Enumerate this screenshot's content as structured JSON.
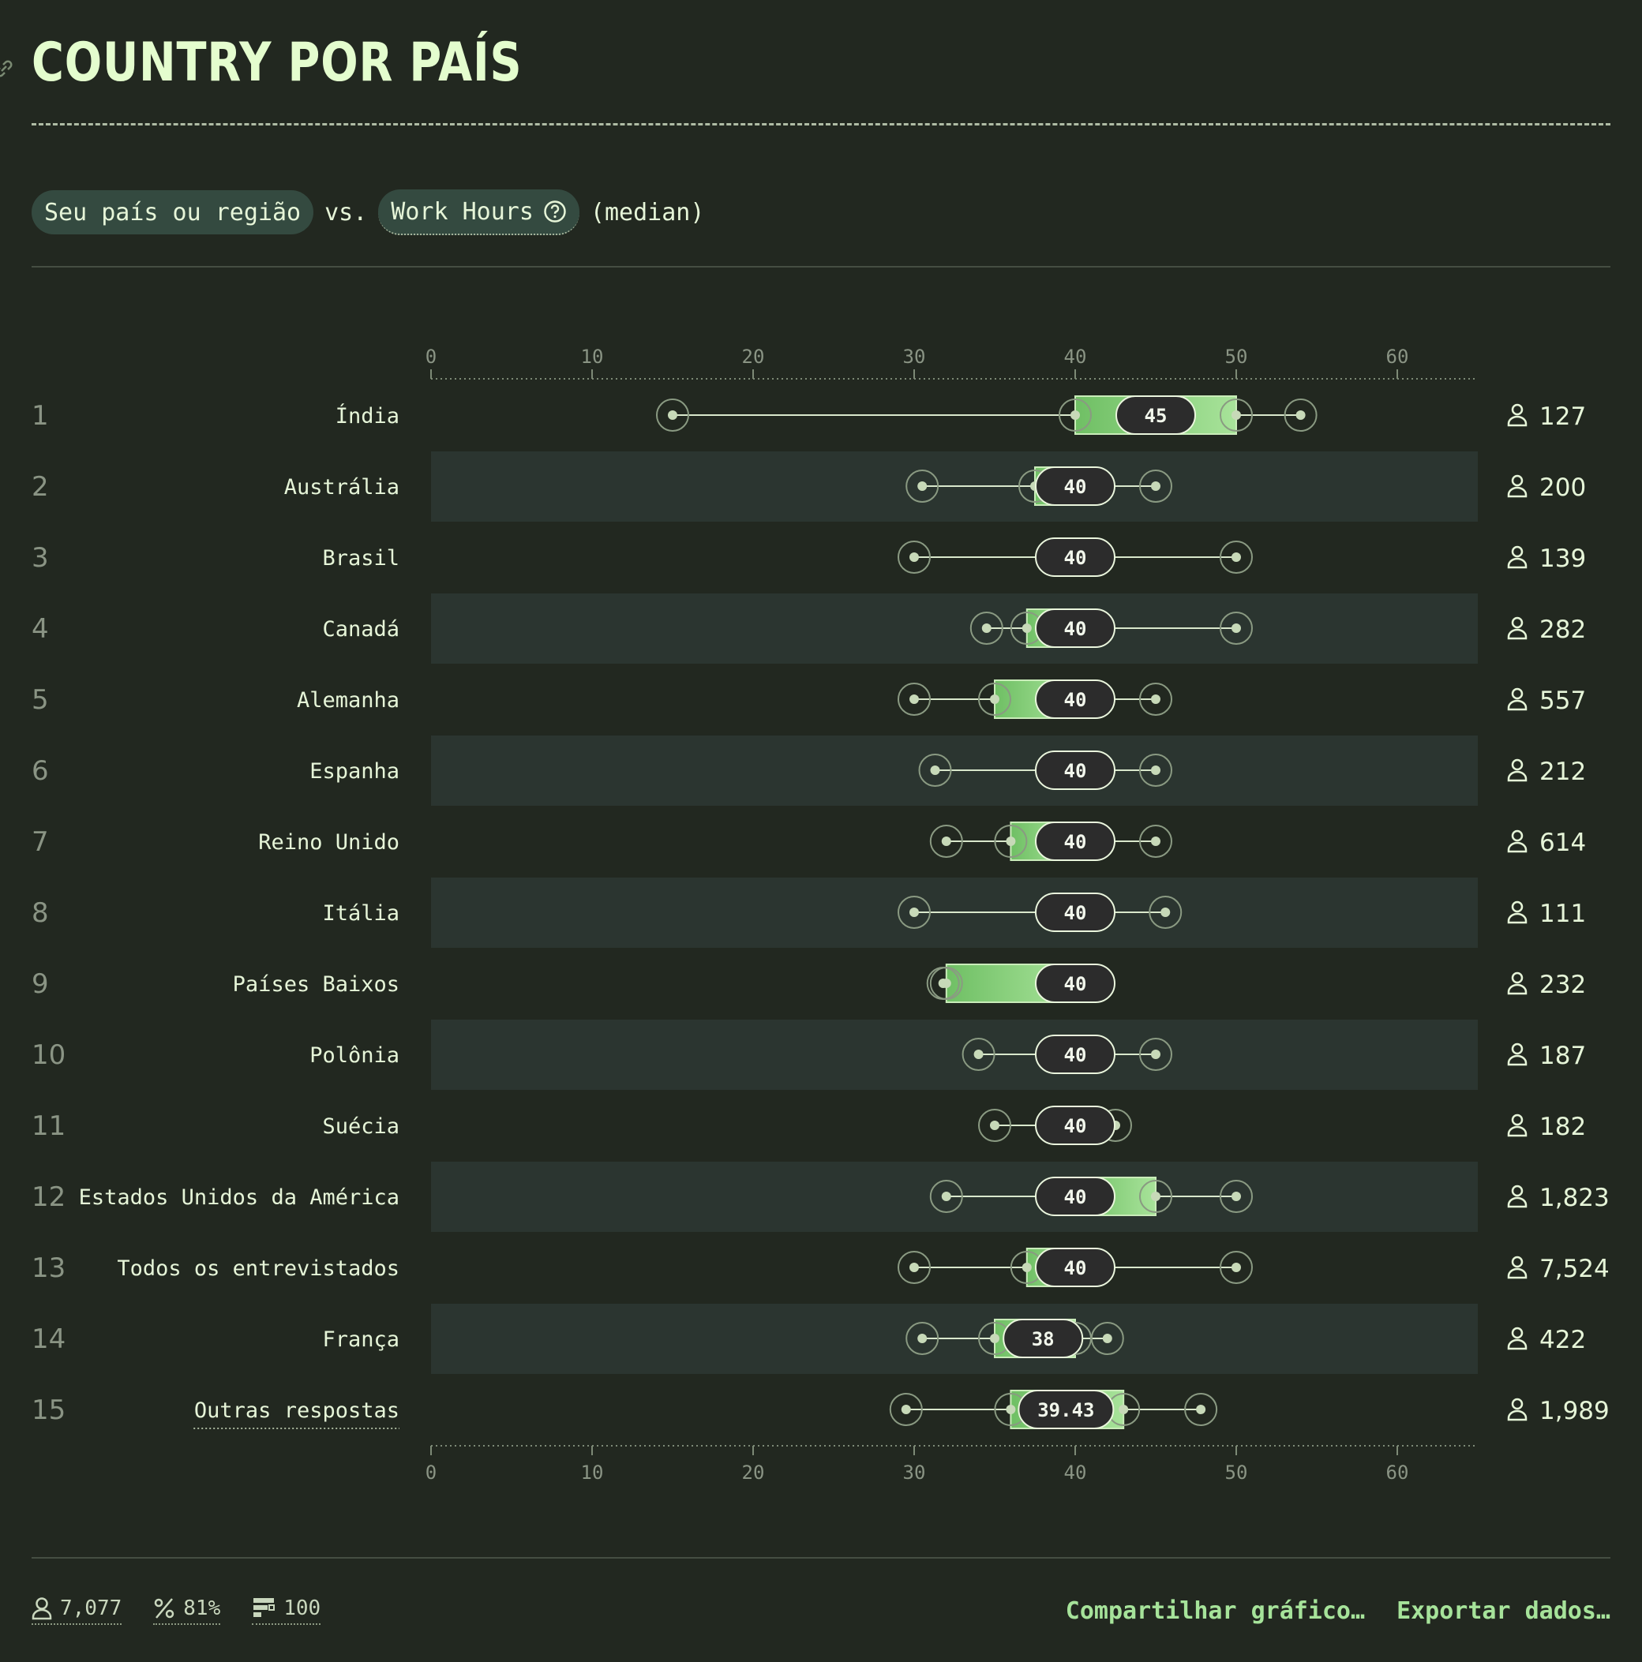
{
  "title": "COUNTRY POR PAÍS",
  "controls": {
    "group_label": "Seu país ou região",
    "vs": "vs.",
    "metric_label": "Work Hours",
    "stat_label": "(median)"
  },
  "chart_data": {
    "type": "boxplot",
    "title": "COUNTRY POR PAÍS",
    "xlim": [
      0,
      65
    ],
    "ticks": [
      0,
      10,
      20,
      30,
      40,
      50,
      60
    ],
    "rows": [
      {
        "rank": "1",
        "label": "Índia",
        "min": 15,
        "q1": 40,
        "median": 45,
        "q3": 50,
        "max": 54,
        "count": "127"
      },
      {
        "rank": "2",
        "label": "Austrália",
        "min": 30.5,
        "q1": 37.5,
        "median": 40,
        "q3": 40,
        "max": 45,
        "count": "200"
      },
      {
        "rank": "3",
        "label": "Brasil",
        "min": 30,
        "q1": 40,
        "median": 40,
        "q3": 40,
        "max": 50,
        "count": "139"
      },
      {
        "rank": "4",
        "label": "Canadá",
        "min": 34.5,
        "q1": 37,
        "median": 40,
        "q3": 40,
        "max": 50,
        "count": "282"
      },
      {
        "rank": "5",
        "label": "Alemanha",
        "min": 30,
        "q1": 35,
        "median": 40,
        "q3": 40,
        "max": 45,
        "count": "557"
      },
      {
        "rank": "6",
        "label": "Espanha",
        "min": 31.3,
        "q1": 40,
        "median": 40,
        "q3": 40,
        "max": 45,
        "count": "212"
      },
      {
        "rank": "7",
        "label": "Reino Unido",
        "min": 32,
        "q1": 36,
        "median": 40,
        "q3": 40,
        "max": 45,
        "count": "614"
      },
      {
        "rank": "8",
        "label": "Itália",
        "min": 30,
        "q1": 40,
        "median": 40,
        "q3": 40,
        "max": 45.6,
        "count": "111"
      },
      {
        "rank": "9",
        "label": "Países Baixos",
        "min": 31.8,
        "q1": 32,
        "median": 40,
        "q3": 40,
        "max": 40,
        "count": "232"
      },
      {
        "rank": "10",
        "label": "Polônia",
        "min": 34,
        "q1": 40,
        "median": 40,
        "q3": 40,
        "max": 45,
        "count": "187"
      },
      {
        "rank": "11",
        "label": "Suécia",
        "min": 35,
        "q1": 40,
        "median": 40,
        "q3": 40,
        "max": 42.5,
        "count": "182"
      },
      {
        "rank": "12",
        "label": "Estados Unidos da América",
        "min": 32,
        "q1": 40,
        "median": 40,
        "q3": 45,
        "max": 50,
        "count": "1,823"
      },
      {
        "rank": "13",
        "label": "Todos os entrevistados",
        "min": 30,
        "q1": 37,
        "median": 40,
        "q3": 40,
        "max": 50,
        "count": "7,524"
      },
      {
        "rank": "14",
        "label": "França",
        "min": 30.5,
        "q1": 35,
        "median": 38,
        "q3": 40,
        "max": 42,
        "count": "422"
      },
      {
        "rank": "15",
        "label": "Outras respostas",
        "min": 29.5,
        "q1": 36,
        "median": 39.43,
        "q3": 43,
        "max": 47.8,
        "count": "1,989"
      }
    ]
  },
  "footer": {
    "respondents": "7,077",
    "percent": "81%",
    "completion": "100",
    "share_label": "Compartilhar gráfico…",
    "export_label": "Exportar dados…"
  },
  "colors": {
    "background": "#222820",
    "row_alt": "#2b3530",
    "box_light": "#a8e39a",
    "box_dark": "#6fbf64",
    "pill_fill": "#2c2c2c",
    "text": "#e6f5d8",
    "muted": "#8a9484"
  }
}
